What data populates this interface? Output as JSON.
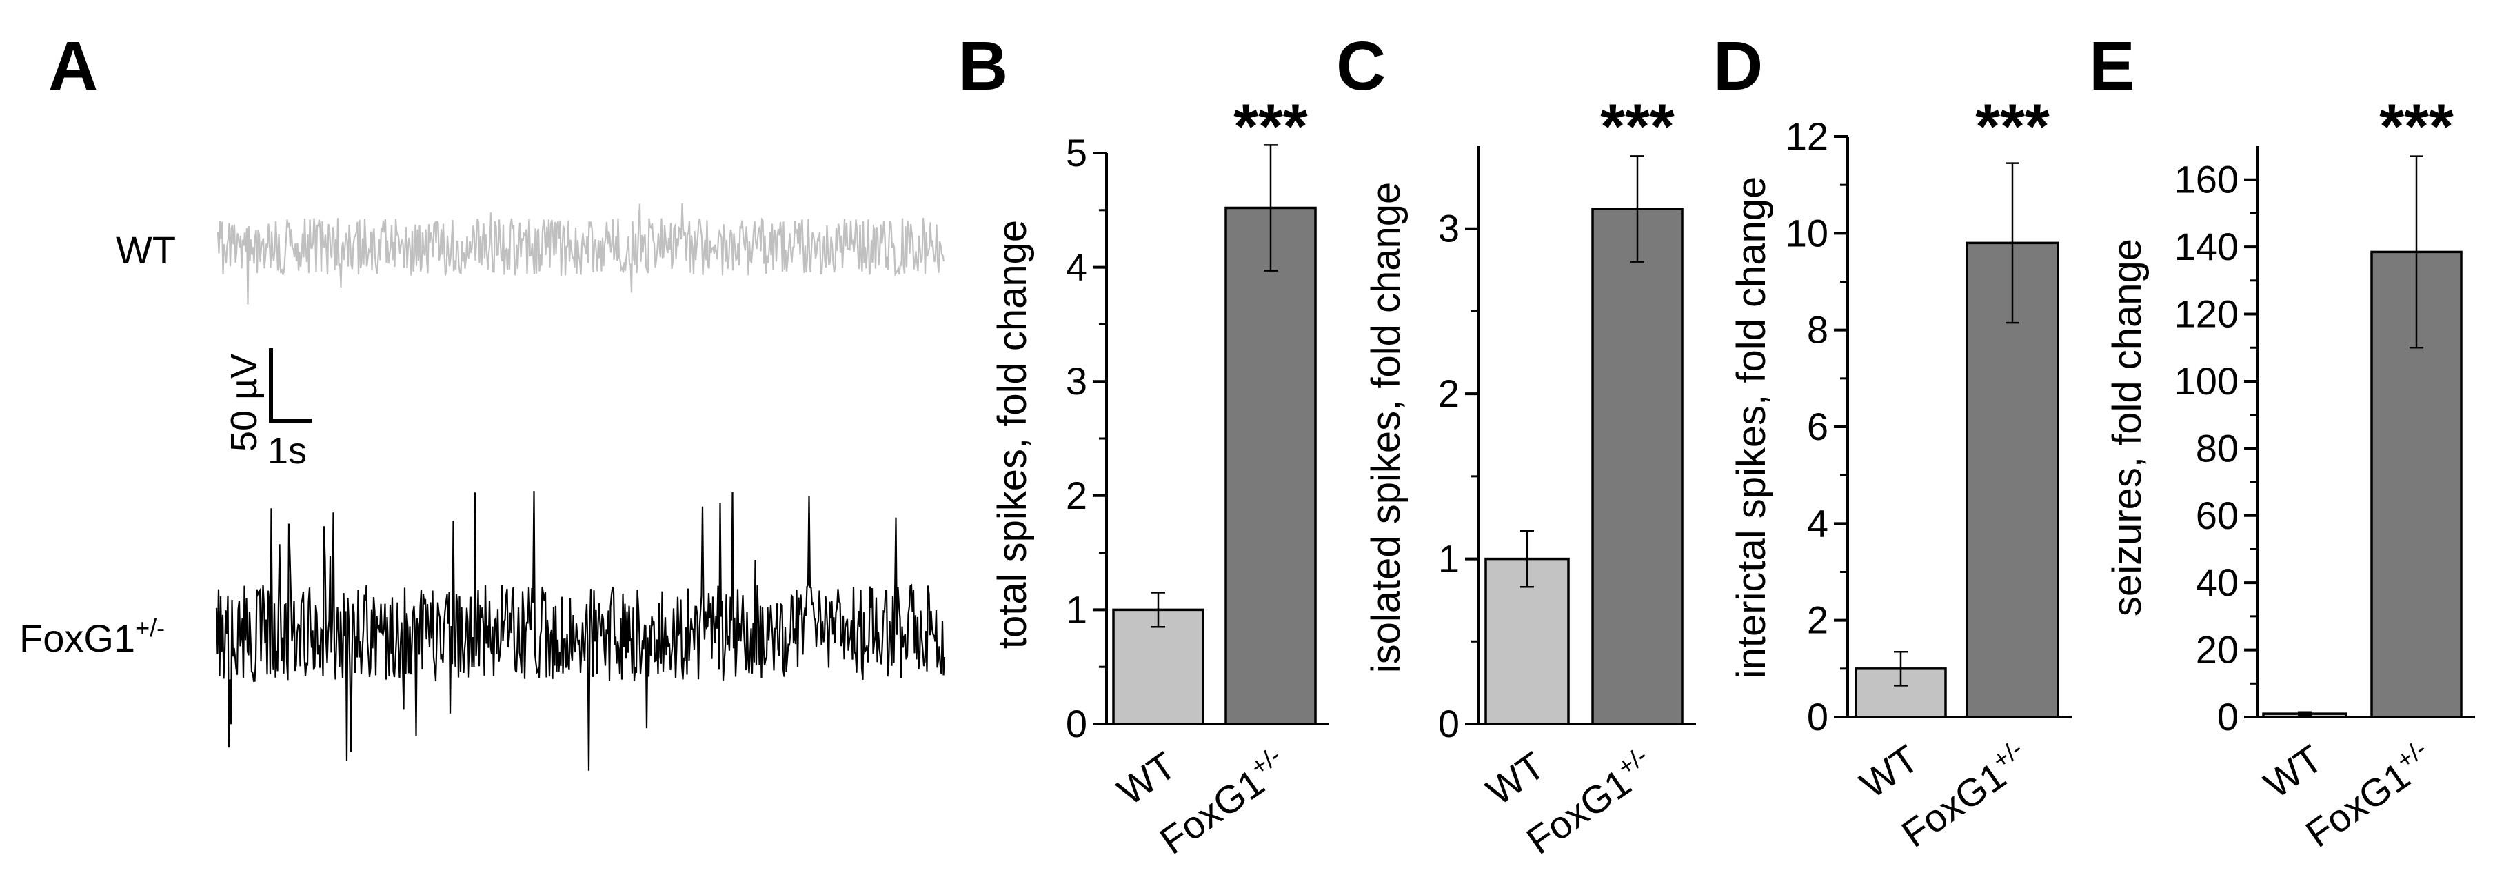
{
  "panel_a": {
    "letter": "A",
    "wt_label": "WT",
    "foxg1_label_base": "FoxG1",
    "foxg1_label_sup": "+/-",
    "scale_voltage": "50 µV",
    "scale_time": "1s",
    "colors": {
      "wt_trace": "#c0c0c0",
      "foxg1_trace": "#000000"
    }
  },
  "chart_data": [
    {
      "panel": "B",
      "type": "bar",
      "categories": [
        "WT",
        "FoxG1+/-"
      ],
      "values": [
        1.0,
        4.52
      ],
      "errors": [
        0.15,
        0.55
      ],
      "ylabel": "total spikes, fold change",
      "ylim": [
        0,
        5
      ],
      "yticks": [
        "0",
        "1",
        "2",
        "3",
        "4",
        "5"
      ],
      "significance": "***"
    },
    {
      "panel": "C",
      "type": "bar",
      "categories": [
        "WT",
        "FoxG1+/-"
      ],
      "values": [
        1.0,
        3.12
      ],
      "errors": [
        0.17,
        0.32
      ],
      "ylabel": "isolated spikes, fold change",
      "ylim": [
        0,
        3.5
      ],
      "yticks": [
        "0",
        "1",
        "2",
        "3"
      ],
      "significance": "***"
    },
    {
      "panel": "D",
      "type": "bar",
      "categories": [
        "WT",
        "FoxG1+/-"
      ],
      "values": [
        1.0,
        9.8
      ],
      "errors": [
        0.35,
        1.65
      ],
      "ylabel": "interictal spikes, fold change",
      "ylim": [
        0,
        12
      ],
      "yticks": [
        "0",
        "2",
        "4",
        "6",
        "8",
        "10",
        "12"
      ],
      "significance": "***"
    },
    {
      "panel": "E",
      "type": "bar",
      "categories": [
        "WT",
        "FoxG1+/-"
      ],
      "values": [
        1.0,
        138.5
      ],
      "errors": [
        0.5,
        28.5
      ],
      "ylabel": "seizures, fold change",
      "ylim": [
        0,
        170
      ],
      "yticks": [
        "0",
        "20",
        "40",
        "60",
        "80",
        "100",
        "120",
        "140",
        "160"
      ],
      "significance": "***"
    }
  ],
  "colors": {
    "wt_bar": "#c3c3c3",
    "foxg1_bar": "#7a7a7a",
    "axis": "#000000"
  }
}
